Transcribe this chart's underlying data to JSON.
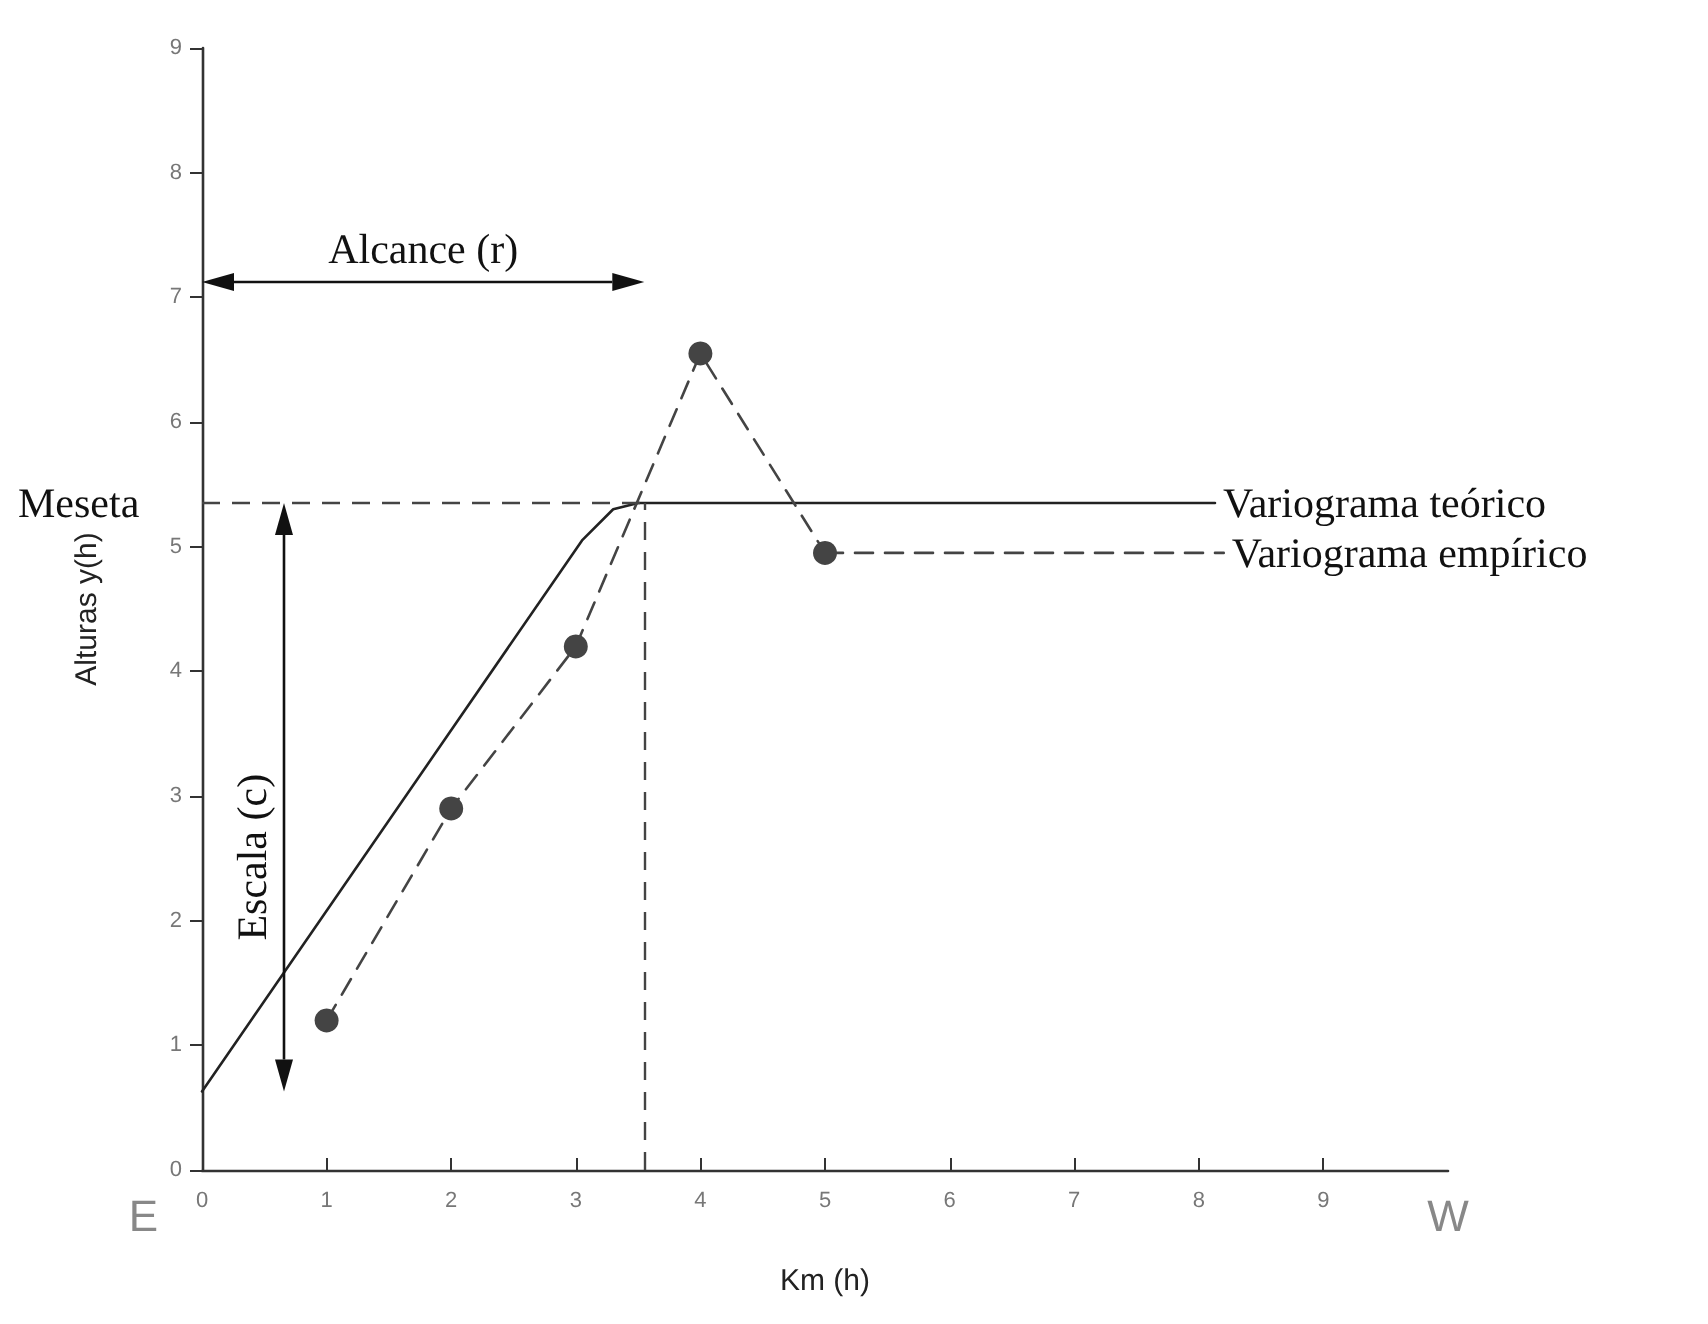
{
  "chart_data": {
    "type": "line",
    "xlabel": "Km (h)",
    "ylabel": "Alturas y(h)",
    "xlim": [
      0,
      10
    ],
    "xticks": [
      0,
      1,
      2,
      3,
      4,
      5,
      6,
      7,
      8,
      9
    ],
    "ylim": [
      0,
      9
    ],
    "yticks": [
      0,
      1,
      2,
      3,
      4,
      5,
      6,
      7,
      8,
      9
    ],
    "grid": false,
    "legend": false,
    "series": [
      {
        "name": "Variograma teórico",
        "color": "#222222",
        "x": [
          0,
          3.05,
          3.3,
          3.5,
          8.13
        ],
        "values": [
          0.63,
          5.05,
          5.3,
          5.35,
          5.35
        ],
        "marker": "none",
        "line_style": "solid"
      },
      {
        "type": "line",
        "color": "#444444",
        "x": [
          1,
          2,
          3,
          4,
          5
        ],
        "values": [
          1.2,
          2.9,
          4.2,
          6.55,
          4.95
        ],
        "marker": "circle",
        "line_style": "dashed"
      },
      {
        "name": "Variograma empírico",
        "color": "#444444",
        "x": [
          5,
          8.2
        ],
        "values": [
          4.95,
          4.95
        ],
        "marker": "none",
        "line_style": "dashed"
      }
    ],
    "ref_lines": [
      {
        "axis": "y",
        "value": 5.35,
        "label": "Meseta",
        "line_style": "dashed",
        "color": "#444444"
      },
      {
        "axis": "x",
        "value": 3.55,
        "line_style": "dashed",
        "color": "#444444"
      }
    ],
    "annotations": [
      "Alcance (r)",
      "Escala (c)",
      "E",
      "W"
    ]
  }
}
